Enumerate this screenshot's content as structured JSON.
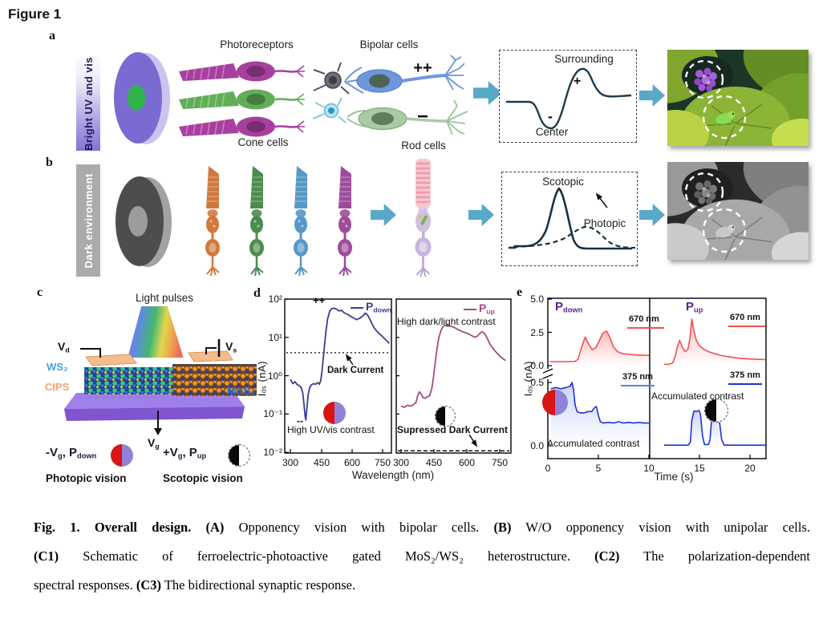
{
  "figure_title": "Figure 1",
  "panel_a": {
    "label": "a",
    "side_label": "Bright UV and vis",
    "photoreceptors": "Photoreceptors",
    "bipolar_cells": "Bipolar cells",
    "cone_cells": "Cone cells",
    "rod_cells": "Rod cells",
    "on_sign": "++",
    "off_sign": "−",
    "rf": {
      "surrounding": "Surrounding",
      "plus": "+",
      "minus": "-",
      "center": "Center"
    }
  },
  "panel_b": {
    "label": "b",
    "side_label": "Dark environment",
    "scotopic": "Scotopic",
    "photopic": "Photopic"
  },
  "panel_c": {
    "label": "c",
    "light_pulses": "Light pulses",
    "vd_main": "V",
    "vd_sub": "d",
    "vs_main": "V",
    "vs_sub": "s",
    "vg_main": "V",
    "vg_sub": "g",
    "ws2": "WS₂",
    "cips": "CIPS",
    "mos2": "MoS₂",
    "pdown_prefix": "-V",
    "pdown_prefix_sub": "g",
    "pdown_p": ", P",
    "pdown_p_sub": "down",
    "pup_prefix": "+V",
    "pup_prefix_sub": "g",
    "pup_p": ", P",
    "pup_p_sub": "up",
    "photopic_vision": "Photopic vision",
    "scotopic_vision": "Scotopic vision"
  },
  "panel_d_label": "d",
  "panel_e_label": "e",
  "colors": {
    "arrow": "#58a8c8",
    "pdown_curve": "#3b3b94",
    "pup_curve": "#a14e80",
    "red_670": "#f25050",
    "blue_375": "#2030d8",
    "polarization_red": "#d81414",
    "polarization_purple": "#9182d8",
    "label_purple": "#5a2090",
    "ws2_label": "#4a9de0",
    "cips_label": "#f4a27c",
    "mos2_label": "#2e6be0"
  },
  "chart_data": [
    {
      "id": "d-left",
      "type": "line",
      "ylog": true,
      "xlabel": "Wavelength (nm)",
      "ylabel": "Ids (nA)",
      "ylabel_main": "I",
      "ylabel_sub": "ds",
      "ylabel_unit": " (nA)",
      "xlim": [
        290,
        800
      ],
      "ylim": [
        0.01,
        100
      ],
      "x_ticks": [
        300,
        450,
        600,
        750
      ],
      "y_tick_labels": [
        "10²",
        "10¹",
        "10⁰",
        "10⁻¹",
        "10⁻²"
      ],
      "series": [
        {
          "name": "Pdown",
          "name_main": "P",
          "name_sub": "down",
          "color": "#3b3b94",
          "x": [
            300,
            312,
            322,
            332,
            342,
            352,
            360,
            366,
            371,
            375,
            380,
            386,
            394,
            402,
            412,
            422,
            432,
            440,
            447,
            453,
            459,
            465,
            472,
            480,
            490,
            500,
            512,
            524,
            536,
            548,
            560,
            572,
            584,
            596,
            608,
            620,
            632,
            644,
            654,
            662,
            668,
            675,
            684,
            694,
            706,
            718,
            730,
            742,
            754,
            766,
            778
          ],
          "y": [
            0.8,
            0.62,
            0.7,
            0.6,
            0.55,
            0.5,
            0.35,
            0.18,
            0.09,
            0.07,
            0.14,
            0.32,
            0.5,
            0.58,
            0.62,
            0.6,
            0.66,
            0.6,
            0.75,
            1.3,
            2.8,
            6,
            14,
            30,
            48,
            56,
            58,
            54,
            49,
            51,
            44,
            41,
            38,
            34,
            32,
            29,
            31,
            34,
            38,
            43,
            41,
            37,
            30,
            23,
            17.5,
            14.5,
            12.5,
            11,
            9.5,
            8.2,
            7
          ]
        }
      ],
      "ref_line": {
        "label": "Dark Current",
        "value": 4,
        "style": "dotted"
      },
      "annotations": {
        "peak": "++",
        "dip": "--",
        "contrast": "High UV/vis contrast"
      }
    },
    {
      "id": "d-right",
      "type": "line",
      "ylog": true,
      "xlabel": "Wavelength (nm)",
      "xlim": [
        290,
        800
      ],
      "ylim": [
        0.01,
        100
      ],
      "x_ticks": [
        300,
        450,
        600,
        750
      ],
      "series": [
        {
          "name": "Pup",
          "name_main": "P",
          "name_sub": "up",
          "color": "#a14e80",
          "x": [
            300,
            315,
            330,
            345,
            358,
            368,
            376,
            384,
            392,
            400,
            410,
            420,
            430,
            440,
            448,
            456,
            464,
            472,
            482,
            492,
            504,
            516,
            528,
            540,
            552,
            564,
            576,
            588,
            600,
            612,
            624,
            636,
            646,
            656,
            664,
            672,
            682,
            692,
            704,
            716,
            728,
            740,
            752,
            764,
            778
          ],
          "y": [
            0.16,
            0.15,
            0.17,
            0.16,
            0.18,
            0.2,
            0.3,
            0.38,
            0.33,
            0.27,
            0.26,
            0.28,
            0.3,
            0.45,
            0.9,
            2.2,
            5,
            9.5,
            15,
            19.5,
            21,
            20.5,
            19.5,
            18.5,
            17,
            15.5,
            14.5,
            13.5,
            13,
            12,
            11,
            10.2,
            10.5,
            12,
            13.5,
            14,
            12.5,
            10,
            7,
            5.5,
            4.5,
            3.8,
            3.2,
            2.8,
            2.5
          ]
        }
      ],
      "ref_line": {
        "label": "Supressed Dark Current",
        "value": 0.011,
        "style": "dashed"
      },
      "annotations": {
        "contrast": "High dark/light contrast"
      }
    },
    {
      "id": "e-left",
      "type": "line",
      "xlabel": "Time (s)",
      "ylabel": "Ids (nA)",
      "ylabel_main": "I",
      "ylabel_sub": "ds",
      "ylabel_unit": " (nA)",
      "x_ticks": [
        0,
        5,
        10
      ],
      "y_tick_labels_top": [
        "5.0",
        "2.5",
        "0.0"
      ],
      "y_tick_labels_bottom": [
        "0.5",
        "0.0"
      ],
      "y_axis_break": true,
      "polar_label_main": "P",
      "polar_label_sub": "down",
      "contrast_label": "Accumulated contrast",
      "series": [
        {
          "name": "670 nm",
          "color": "#f25050",
          "axis": "top",
          "x": [
            0.2,
            1,
            2,
            2.7,
            3.0,
            3.35,
            3.7,
            4.05,
            4.4,
            4.75,
            5.1,
            5.45,
            5.8,
            6.15,
            6.5,
            6.9,
            7.4,
            8,
            8.8,
            9.5,
            10
          ],
          "y": [
            0.3,
            0.3,
            0.3,
            0.32,
            0.5,
            1.4,
            2.15,
            1.6,
            1.2,
            1.35,
            1.9,
            2.45,
            2.6,
            2.1,
            1.4,
            1.05,
            0.9,
            0.85,
            0.8,
            0.78,
            0.77
          ]
        },
        {
          "name": "375 nm",
          "color": "#2030d8",
          "axis": "bottom",
          "x": [
            0.3,
            0.8,
            1.3,
            1.8,
            2.2,
            2.4,
            2.55,
            2.7,
            2.9,
            3.2,
            3.6,
            4.0,
            4.35,
            4.6,
            4.8,
            5.0,
            5.2,
            5.5,
            6,
            6.5,
            7,
            7.5,
            8,
            8.5,
            9,
            9.5,
            10
          ],
          "y": [
            0.45,
            0.46,
            0.45,
            0.46,
            0.47,
            0.5,
            0.44,
            0.32,
            0.27,
            0.26,
            0.26,
            0.27,
            0.27,
            0.3,
            0.31,
            0.24,
            0.19,
            0.18,
            0.185,
            0.18,
            0.19,
            0.18,
            0.185,
            0.18,
            0.185,
            0.18,
            0.18
          ]
        }
      ]
    },
    {
      "id": "e-right",
      "type": "line",
      "xlabel": "Time (s)",
      "x_ticks": [
        15,
        20
      ],
      "polar_label_main": "P",
      "polar_label_sub": "up",
      "contrast_label": "Accumulated contrast",
      "series": [
        {
          "name": "670 nm",
          "color": "#f25050",
          "axis": "top",
          "x": [
            11.5,
            12.0,
            12.35,
            12.6,
            12.85,
            13.05,
            13.3,
            13.6,
            13.85,
            14.05,
            14.25,
            14.45,
            14.7,
            15.0,
            15.4,
            15.9,
            16.5,
            17.2,
            18,
            19,
            20,
            21.5
          ],
          "y": [
            0.1,
            0.1,
            0.2,
            0.7,
            1.5,
            1.9,
            1.4,
            1.05,
            1.2,
            2.0,
            3.5,
            2.6,
            1.9,
            1.5,
            1.25,
            1.05,
            0.9,
            0.75,
            0.65,
            0.55,
            0.5,
            0.45
          ]
        },
        {
          "name": "375 nm",
          "color": "#2030d8",
          "axis": "bottom",
          "x": [
            11.5,
            13.9,
            14.1,
            14.25,
            14.45,
            14.7,
            14.95,
            15.1,
            15.3,
            15.5,
            15.9,
            16.05,
            16.2,
            16.5,
            16.8,
            17.0,
            17.2,
            17.45,
            21.5
          ],
          "y": [
            0.005,
            0.005,
            0.03,
            0.2,
            0.275,
            0.27,
            0.28,
            0.25,
            0.08,
            0.01,
            0.01,
            0.05,
            0.2,
            0.2,
            0.21,
            0.18,
            0.05,
            0.005,
            0.005
          ]
        }
      ]
    }
  ],
  "caption": {
    "l1_b1": "Fig. 1. Overall design. (A)",
    "l1_r1": " Opponency vision with bipolar cells.  ",
    "l1_b2": "(B)",
    "l1_r2": " W/O opponency vision with unipolar cells.",
    "l2_b1": "(C1)",
    "l2_r1": " Schematic of ferroelectric-photoactive gated MoS₂/WS₂ heterostructure. ",
    "l2_b2": "(C2)",
    "l2_r2": " The polarization-dependent",
    "l3_r1": "spectral responses. ",
    "l3_b1": "(C3)",
    "l3_r2": " The bidirectional synaptic response."
  }
}
